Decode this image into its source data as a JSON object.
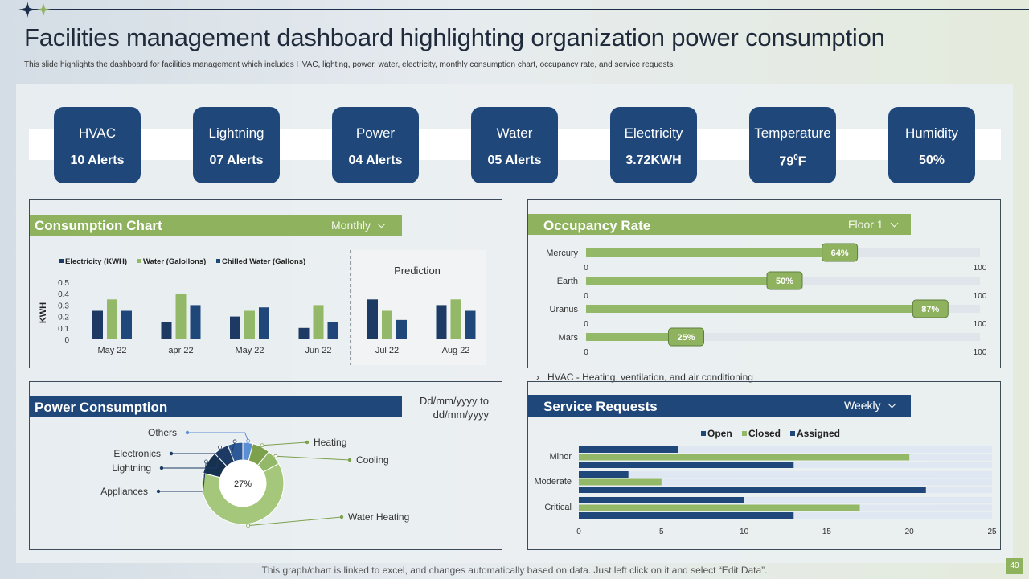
{
  "page": {
    "title": "Facilities management dashboard highlighting organization power consumption",
    "subtitle": "This slide highlights the dashboard for facilities management  which includes HVAC, lighting,  power, water, electricity, monthly consumption chart, occupancy rate, and service requests.",
    "footer": "This graph/chart is linked to excel,  and changes automatically based on data. Just left click on it and select “Edit Data”.",
    "page_number": "40"
  },
  "cards": [
    {
      "label": "HVAC",
      "value": "10 Alerts"
    },
    {
      "label": "Lightning",
      "value": "07 Alerts"
    },
    {
      "label": "Power",
      "value": "04 Alerts"
    },
    {
      "label": "Water",
      "value": "05 Alerts"
    },
    {
      "label": "Electricity",
      "value": "3.72KWH"
    },
    {
      "label": "Temperature",
      "value": "790F"
    },
    {
      "label": "Humidity",
      "value": "50%"
    }
  ],
  "consumption": {
    "title": "Consumption Chart",
    "period": "Monthly",
    "prediction_label": "Prediction"
  },
  "occupancy": {
    "title": "Occupancy Rate",
    "floor": "Floor 1",
    "note": "HVAC - Heating, ventilation, and air conditioning"
  },
  "power": {
    "title": "Power Consumption",
    "date_range": "Dd/mm/yyyy to dd/mm/yyyy"
  },
  "service": {
    "title": "Service Requests",
    "period": "Weekly"
  },
  "colors": {
    "navy": "#1f477a",
    "dark_navy": "#1c3a63",
    "green": "#93b968",
    "light_blue": "#5b8fd4"
  },
  "chart_data": [
    {
      "type": "bar",
      "ylabel": "KWH",
      "categories": [
        "May 22",
        "apr 22",
        "May 22",
        "Jun 22",
        "Jul 22",
        "Aug 22"
      ],
      "prediction_categories": [
        "Jul 22",
        "Aug 22"
      ],
      "ylim": [
        0,
        0.5
      ],
      "yticks": [
        "0",
        "0.1",
        "0.2",
        "0.3",
        "0.4",
        "0.5"
      ],
      "series": [
        {
          "name": "Electricity (KWH)",
          "values": [
            0.25,
            0.15,
            0.2,
            0.1,
            0.35,
            0.3
          ]
        },
        {
          "name": "Water (Galollons)",
          "values": [
            0.35,
            0.4,
            0.25,
            0.3,
            0.25,
            0.35
          ]
        },
        {
          "name": "Chilled Water (Gallons)",
          "values": [
            0.25,
            0.3,
            0.28,
            0.15,
            0.17,
            0.25
          ]
        }
      ]
    },
    {
      "type": "bar",
      "orientation": "horizontal",
      "categories": [
        "Mercury",
        "Earth",
        "Uranus",
        "Mars"
      ],
      "values": [
        64,
        50,
        87,
        25
      ],
      "value_labels": [
        "64%",
        "50%",
        "87%",
        "25%"
      ],
      "xlim": [
        0,
        100
      ],
      "axis_min_label": "0",
      "axis_max_label": "100"
    },
    {
      "type": "pie",
      "center_label": "27%",
      "labels": [
        "Others",
        "Electronics",
        "Lightning",
        "Appliances",
        "Heating",
        "Cooling",
        "Water Heating"
      ],
      "values": [
        4,
        6,
        6,
        9,
        7,
        6,
        62
      ]
    },
    {
      "type": "bar",
      "orientation": "horizontal",
      "categories": [
        "Minor",
        "Moderate",
        "Critical"
      ],
      "xlim": [
        0,
        25
      ],
      "xticks": [
        "0",
        "5",
        "10",
        "15",
        "20",
        "25"
      ],
      "series": [
        {
          "name": "Open",
          "values": [
            6,
            3,
            10
          ]
        },
        {
          "name": "Closed",
          "values": [
            20,
            5,
            17
          ]
        },
        {
          "name": "Assigned",
          "values": [
            13,
            21,
            13
          ]
        }
      ]
    }
  ]
}
